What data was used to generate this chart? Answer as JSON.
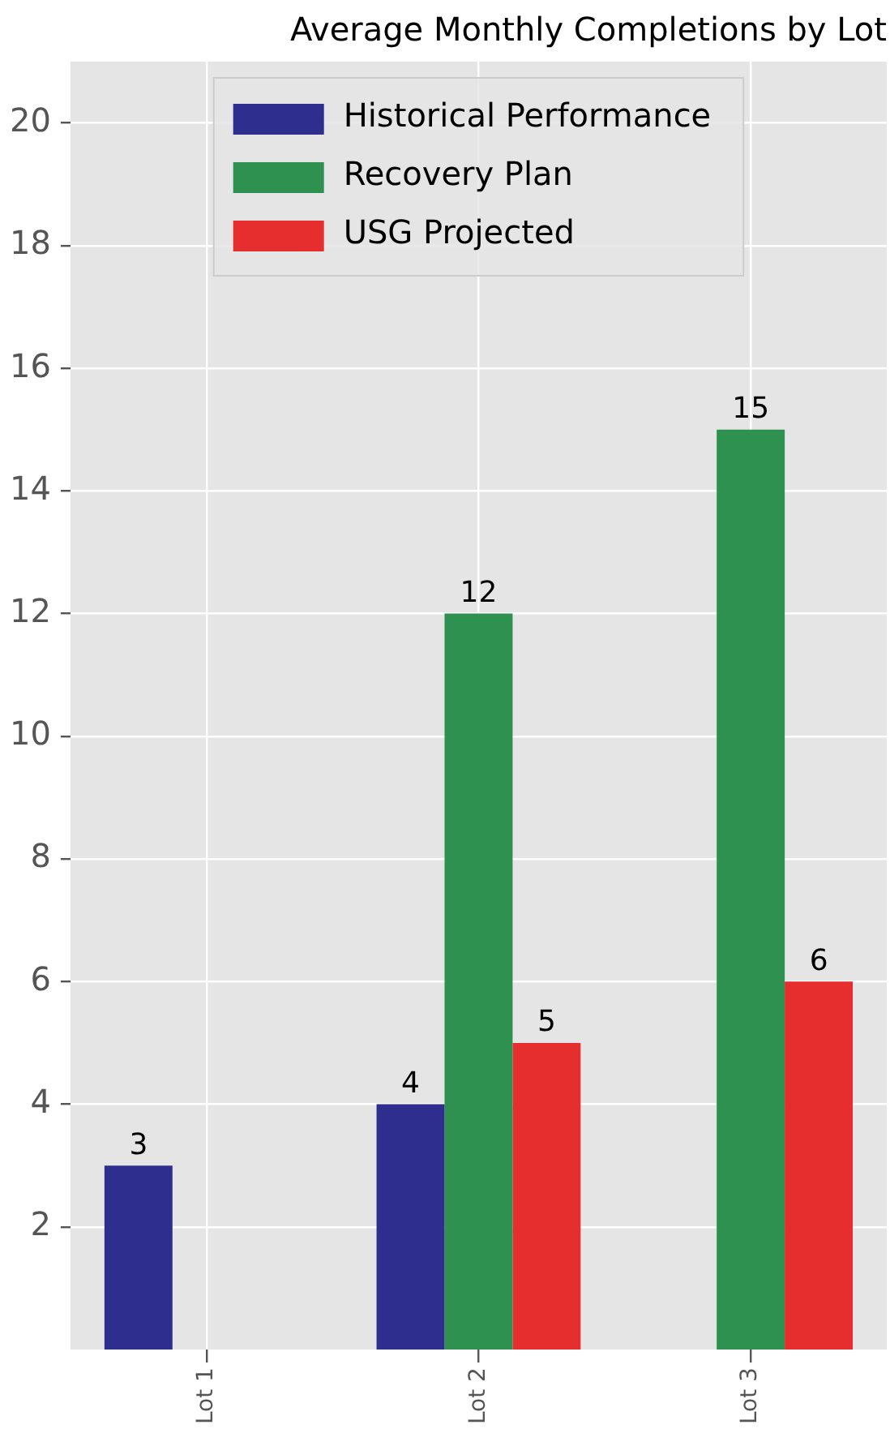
{
  "chart_data": {
    "type": "bar",
    "title": "Average Monthly Completions by Lot",
    "categories": [
      "Lot 1",
      "Lot 2",
      "Lot 3"
    ],
    "series": [
      {
        "name": "Historical Performance",
        "color": "#2e2e8e",
        "values": [
          3,
          4,
          null
        ]
      },
      {
        "name": "Recovery Plan",
        "color": "#2e9150",
        "values": [
          null,
          12,
          15
        ]
      },
      {
        "name": "USG Projected",
        "color": "#e62e2e",
        "values": [
          null,
          5,
          6
        ]
      }
    ],
    "ylim": [
      0,
      21
    ],
    "yticks": [
      2,
      4,
      6,
      8,
      10,
      12,
      14,
      16,
      18,
      20
    ],
    "grid": true,
    "legend": "top",
    "data_labels": true
  }
}
